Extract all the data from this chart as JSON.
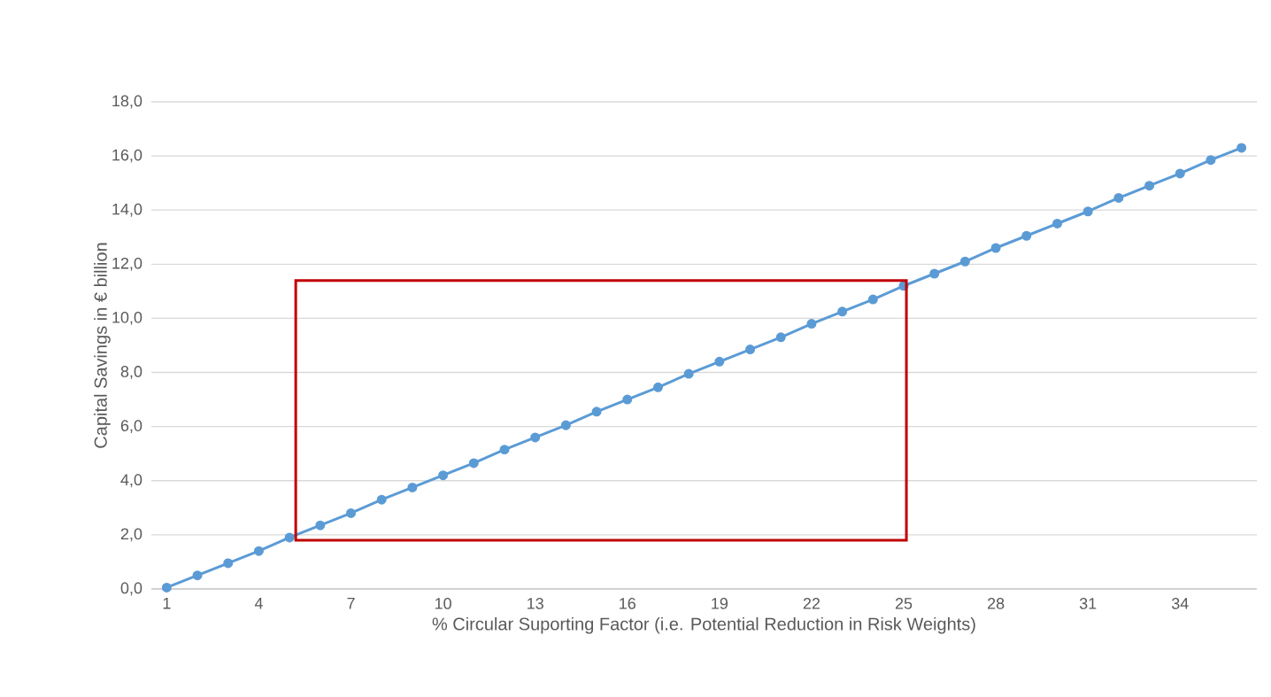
{
  "chart_data": {
    "type": "line",
    "xlabel": "% Circular Suporting Factor (i.e. Potential Reduction in Risk Weights)",
    "ylabel": "Capital Savings in € billion",
    "x": [
      1,
      2,
      3,
      4,
      5,
      6,
      7,
      8,
      9,
      10,
      11,
      12,
      13,
      14,
      15,
      16,
      17,
      18,
      19,
      20,
      21,
      22,
      23,
      24,
      25,
      26,
      27,
      28,
      29,
      30,
      31,
      32,
      33,
      34,
      35,
      36
    ],
    "series": [
      {
        "color": "#5b9bd5",
        "values": [
          0.05,
          0.5,
          0.95,
          1.4,
          1.9,
          2.35,
          2.8,
          3.3,
          3.75,
          4.2,
          4.65,
          5.15,
          5.6,
          6.05,
          6.55,
          7.0,
          7.45,
          7.95,
          8.4,
          8.85,
          9.3,
          9.8,
          10.25,
          10.7,
          11.2,
          11.65,
          12.1,
          12.6,
          13.05,
          13.5,
          13.95,
          14.45,
          14.9,
          15.35,
          15.85,
          16.3
        ]
      }
    ],
    "xlim": [
      0.5,
      36.5
    ],
    "xticks": [
      1,
      4,
      7,
      10,
      13,
      16,
      19,
      22,
      25,
      28,
      31,
      34
    ],
    "ylim": [
      0,
      18
    ],
    "yticks": [
      {
        "value": 0,
        "label": "0,0"
      },
      {
        "value": 2,
        "label": "2,0"
      },
      {
        "value": 4,
        "label": "4,0"
      },
      {
        "value": 6,
        "label": "6,0"
      },
      {
        "value": 8,
        "label": "8,0"
      },
      {
        "value": 10,
        "label": "10,0"
      },
      {
        "value": 12,
        "label": "12,0"
      },
      {
        "value": 14,
        "label": "14,0"
      },
      {
        "value": 16,
        "label": "16,0"
      },
      {
        "value": 18,
        "label": "18,0"
      }
    ],
    "grid": "y",
    "marker": "circle",
    "line_style": "solid"
  }
}
